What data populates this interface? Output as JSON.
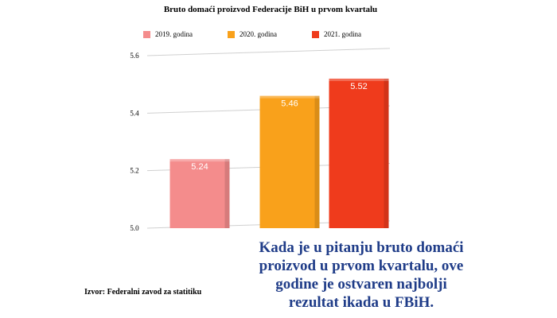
{
  "chart_data": {
    "type": "bar",
    "title": "Bruto domaći proizvod Federacije BiH u prvom kvartalu",
    "categories": [
      "2019. godina",
      "2020. godina",
      "2021. godina"
    ],
    "values": [
      5.24,
      5.46,
      5.52
    ],
    "value_labels": [
      "5.24",
      "5.46",
      "5.52"
    ],
    "colors": [
      "#f48c8c",
      "#f9a11b",
      "#ef3b1c"
    ],
    "ylim": [
      5.0,
      5.6
    ],
    "yticks": [
      5.0,
      5.2,
      5.4,
      5.6
    ],
    "ytick_labels": [
      "5.0",
      "5.2",
      "5.4",
      "5.6"
    ],
    "legend_position": "top",
    "grid": false,
    "xlabel": "",
    "ylabel": ""
  },
  "source_note": "Izvor: Federalni zavod za statitiku",
  "headline_lines": [
    "Kada je u pitanju bruto domaći",
    "proizvod u prvom kvartalu, ove",
    "godine je ostvaren najbolji",
    "rezultat ikada u FBiH."
  ]
}
